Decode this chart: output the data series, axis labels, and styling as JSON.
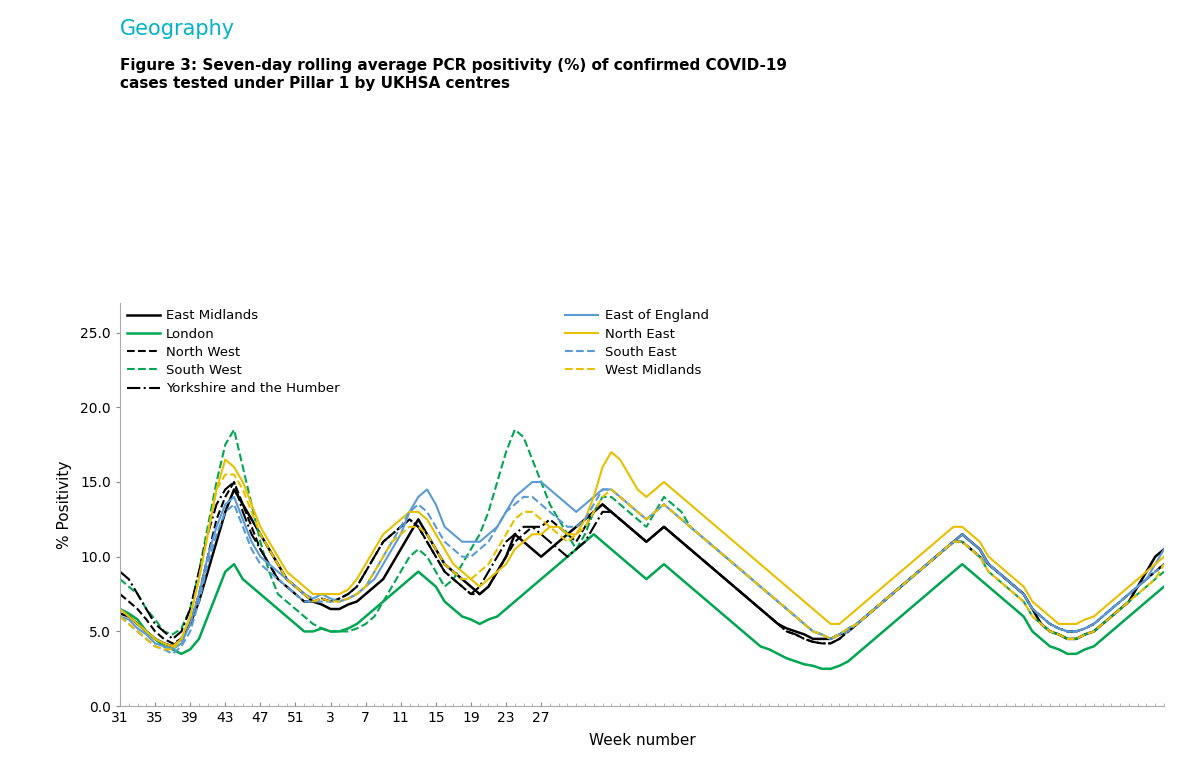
{
  "title_geography": "Geography",
  "title_figure": "Figure 3: Seven-day rolling average PCR positivity (%) of confirmed COVID-19\ncases tested under Pillar 1 by UKHSA centres",
  "xlabel": "Week number",
  "ylabel": "% Positivity",
  "ylim": [
    0.0,
    27.0
  ],
  "yticks": [
    0.0,
    5.0,
    10.0,
    15.0,
    20.0,
    25.0
  ],
  "xtick_labels": [
    "31",
    "35",
    "39",
    "43",
    "47",
    "51",
    "3",
    "7",
    "11",
    "15",
    "19",
    "23",
    "27"
  ],
  "background_color": "#ffffff",
  "geography_color": "#00b4c8",
  "series": {
    "East Midlands": {
      "color": "#000000",
      "linestyle": "solid",
      "linewidth": 1.8,
      "values": [
        6.2,
        6.0,
        5.5,
        5.0,
        4.5,
        4.2,
        4.0,
        4.5,
        5.5,
        7.0,
        9.0,
        11.0,
        13.0,
        14.5,
        13.5,
        12.5,
        11.5,
        10.5,
        9.5,
        8.5,
        8.0,
        7.5,
        7.0,
        6.8,
        6.5,
        6.5,
        6.8,
        7.0,
        7.5,
        8.0,
        8.5,
        9.5,
        10.5,
        11.5,
        12.5,
        11.5,
        10.5,
        9.5,
        9.0,
        8.5,
        8.0,
        7.5,
        8.0,
        9.0,
        10.0,
        11.5,
        11.0,
        10.5,
        10.0,
        10.5,
        11.0,
        11.5,
        12.0,
        12.5,
        13.0,
        13.5,
        13.0,
        12.5,
        12.0,
        11.5,
        11.0,
        11.5,
        12.0,
        11.5,
        11.0,
        10.5,
        10.0,
        9.5,
        9.0,
        8.5,
        8.0,
        7.5,
        7.0,
        6.5,
        6.0,
        5.5,
        5.2,
        5.0,
        4.8,
        4.5,
        4.5,
        4.5,
        4.8,
        5.0,
        5.5,
        6.0,
        6.5,
        7.0,
        7.5,
        8.0,
        8.5,
        9.0,
        9.5,
        10.0,
        10.5,
        11.0,
        11.5,
        11.0,
        10.5,
        9.5,
        9.0,
        8.5,
        8.0,
        7.5,
        6.5,
        5.5,
        5.0,
        4.8,
        4.5,
        4.5,
        4.8,
        5.0,
        5.5,
        6.0,
        6.5,
        7.0,
        8.0,
        9.0,
        10.0,
        10.5
      ]
    },
    "London": {
      "color": "#00a650",
      "linestyle": "solid",
      "linewidth": 1.8,
      "values": [
        6.5,
        6.2,
        5.8,
        5.0,
        4.5,
        4.0,
        3.8,
        3.5,
        3.8,
        4.5,
        6.0,
        7.5,
        9.0,
        9.5,
        8.5,
        8.0,
        7.5,
        7.0,
        6.5,
        6.0,
        5.5,
        5.0,
        5.0,
        5.2,
        5.0,
        5.0,
        5.2,
        5.5,
        6.0,
        6.5,
        7.0,
        7.5,
        8.0,
        8.5,
        9.0,
        8.5,
        8.0,
        7.0,
        6.5,
        6.0,
        5.8,
        5.5,
        5.8,
        6.0,
        6.5,
        7.0,
        7.5,
        8.0,
        8.5,
        9.0,
        9.5,
        10.0,
        10.5,
        11.0,
        11.5,
        11.0,
        10.5,
        10.0,
        9.5,
        9.0,
        8.5,
        9.0,
        9.5,
        9.0,
        8.5,
        8.0,
        7.5,
        7.0,
        6.5,
        6.0,
        5.5,
        5.0,
        4.5,
        4.0,
        3.8,
        3.5,
        3.2,
        3.0,
        2.8,
        2.7,
        2.5,
        2.5,
        2.7,
        3.0,
        3.5,
        4.0,
        4.5,
        5.0,
        5.5,
        6.0,
        6.5,
        7.0,
        7.5,
        8.0,
        8.5,
        9.0,
        9.5,
        9.0,
        8.5,
        8.0,
        7.5,
        7.0,
        6.5,
        6.0,
        5.0,
        4.5,
        4.0,
        3.8,
        3.5,
        3.5,
        3.8,
        4.0,
        4.5,
        5.0,
        5.5,
        6.0,
        6.5,
        7.0,
        7.5,
        8.0
      ]
    },
    "North West": {
      "color": "#000000",
      "linestyle": "dashed",
      "linewidth": 1.5,
      "values": [
        7.5,
        7.0,
        6.5,
        5.8,
        5.0,
        4.5,
        4.2,
        4.5,
        5.5,
        7.5,
        10.0,
        12.5,
        14.0,
        15.0,
        13.5,
        12.0,
        10.5,
        9.5,
        8.5,
        8.0,
        7.5,
        7.0,
        7.0,
        7.2,
        7.0,
        7.2,
        7.5,
        8.0,
        9.0,
        10.0,
        11.0,
        11.5,
        12.0,
        12.5,
        12.0,
        11.0,
        10.0,
        9.0,
        8.5,
        8.0,
        7.5,
        7.5,
        8.0,
        9.0,
        10.0,
        11.0,
        11.5,
        12.0,
        12.0,
        12.5,
        12.0,
        11.5,
        11.0,
        12.0,
        13.0,
        13.5,
        13.0,
        12.5,
        12.0,
        11.5,
        11.0,
        11.5,
        12.0,
        11.5,
        11.0,
        10.5,
        10.0,
        9.5,
        9.0,
        8.5,
        8.0,
        7.5,
        7.0,
        6.5,
        6.0,
        5.5,
        5.0,
        4.8,
        4.5,
        4.3,
        4.2,
        4.2,
        4.5,
        5.0,
        5.5,
        6.0,
        6.5,
        7.0,
        7.5,
        8.0,
        8.5,
        9.0,
        9.5,
        10.0,
        10.5,
        11.0,
        11.0,
        10.5,
        10.0,
        9.5,
        9.0,
        8.5,
        8.0,
        7.5,
        6.5,
        6.0,
        5.5,
        5.2,
        5.0,
        5.0,
        5.2,
        5.5,
        6.0,
        6.5,
        7.0,
        7.5,
        8.0,
        8.5,
        9.0,
        9.5
      ]
    },
    "South West": {
      "color": "#00a650",
      "linestyle": "dashed",
      "linewidth": 1.5,
      "values": [
        8.5,
        8.0,
        7.5,
        6.5,
        5.8,
        5.0,
        4.8,
        5.2,
        6.5,
        9.0,
        12.0,
        15.0,
        17.5,
        18.5,
        16.0,
        13.5,
        11.0,
        9.0,
        7.5,
        7.0,
        6.5,
        6.0,
        5.5,
        5.2,
        5.0,
        5.0,
        5.0,
        5.2,
        5.5,
        6.0,
        7.0,
        8.0,
        9.0,
        10.0,
        10.5,
        10.0,
        9.0,
        8.0,
        8.5,
        9.5,
        10.5,
        11.5,
        13.0,
        15.0,
        17.0,
        18.5,
        18.0,
        16.5,
        15.0,
        13.5,
        12.5,
        11.5,
        10.5,
        11.5,
        13.0,
        14.0,
        14.0,
        13.5,
        13.0,
        12.5,
        12.0,
        13.0,
        14.0,
        13.5,
        13.0,
        12.0,
        11.5,
        11.0,
        10.5,
        10.0,
        9.5,
        9.0,
        8.5,
        8.0,
        7.5,
        7.0,
        6.5,
        6.0,
        5.5,
        5.0,
        4.8,
        4.5,
        4.8,
        5.2,
        5.5,
        6.0,
        6.5,
        7.0,
        7.5,
        8.0,
        8.5,
        9.0,
        9.5,
        10.0,
        10.5,
        11.0,
        11.0,
        10.5,
        10.0,
        9.0,
        8.5,
        8.0,
        7.5,
        7.0,
        6.0,
        5.5,
        5.0,
        4.8,
        4.5,
        4.5,
        4.8,
        5.0,
        5.5,
        6.0,
        6.5,
        7.0,
        7.5,
        8.0,
        8.5,
        9.0
      ]
    },
    "Yorkshire and the Humber": {
      "color": "#000000",
      "linestyle": "dashdot",
      "linewidth": 1.5,
      "values": [
        9.0,
        8.5,
        7.5,
        6.5,
        5.5,
        5.0,
        4.5,
        5.0,
        6.5,
        9.0,
        11.5,
        13.5,
        14.5,
        15.0,
        13.0,
        11.5,
        10.5,
        9.5,
        8.5,
        8.0,
        7.5,
        7.0,
        7.0,
        7.2,
        7.0,
        7.2,
        7.5,
        8.0,
        9.0,
        10.0,
        11.0,
        11.5,
        12.0,
        12.5,
        12.0,
        11.0,
        10.0,
        9.0,
        8.5,
        8.0,
        7.5,
        8.0,
        9.0,
        10.0,
        11.0,
        11.5,
        12.0,
        12.0,
        11.5,
        11.0,
        10.5,
        10.0,
        10.5,
        11.0,
        12.0,
        13.0,
        13.0,
        12.5,
        12.0,
        11.5,
        11.0,
        11.5,
        12.0,
        11.5,
        11.0,
        10.5,
        10.0,
        9.5,
        9.0,
        8.5,
        8.0,
        7.5,
        7.0,
        6.5,
        6.0,
        5.5,
        5.0,
        4.8,
        4.5,
        4.3,
        4.2,
        4.2,
        4.5,
        5.0,
        5.5,
        6.0,
        6.5,
        7.0,
        7.5,
        8.0,
        8.5,
        9.0,
        9.5,
        10.0,
        10.5,
        11.0,
        11.0,
        10.5,
        10.0,
        9.5,
        9.0,
        8.5,
        8.0,
        7.5,
        6.5,
        6.0,
        5.5,
        5.2,
        5.0,
        5.0,
        5.2,
        5.5,
        6.0,
        6.5,
        7.0,
        7.5,
        8.0,
        8.5,
        9.0,
        9.5
      ]
    },
    "East of England": {
      "color": "#5b9bd5",
      "linestyle": "solid",
      "linewidth": 1.5,
      "values": [
        6.0,
        5.8,
        5.2,
        4.8,
        4.2,
        4.0,
        3.8,
        4.2,
        5.5,
        7.5,
        10.0,
        12.0,
        13.5,
        14.0,
        12.5,
        11.0,
        10.0,
        9.5,
        9.0,
        8.5,
        8.0,
        7.5,
        7.2,
        7.5,
        7.2,
        7.0,
        7.2,
        7.5,
        8.0,
        8.5,
        9.5,
        10.5,
        11.5,
        13.0,
        14.0,
        14.5,
        13.5,
        12.0,
        11.5,
        11.0,
        11.0,
        11.0,
        11.5,
        12.0,
        13.0,
        14.0,
        14.5,
        15.0,
        15.0,
        14.5,
        14.0,
        13.5,
        13.0,
        13.5,
        14.0,
        14.5,
        14.5,
        14.0,
        13.5,
        13.0,
        12.5,
        13.0,
        13.5,
        13.0,
        12.5,
        12.0,
        11.5,
        11.0,
        10.5,
        10.0,
        9.5,
        9.0,
        8.5,
        8.0,
        7.5,
        7.0,
        6.5,
        6.0,
        5.5,
        5.0,
        4.8,
        4.5,
        4.8,
        5.2,
        5.5,
        6.0,
        6.5,
        7.0,
        7.5,
        8.0,
        8.5,
        9.0,
        9.5,
        10.0,
        10.5,
        11.0,
        11.5,
        11.0,
        10.5,
        9.5,
        9.0,
        8.5,
        8.0,
        7.5,
        6.5,
        6.0,
        5.5,
        5.2,
        5.0,
        5.0,
        5.2,
        5.5,
        6.0,
        6.5,
        7.0,
        7.5,
        8.0,
        8.5,
        9.5,
        10.5
      ]
    },
    "North East": {
      "color": "#e8c000",
      "linestyle": "solid",
      "linewidth": 1.5,
      "values": [
        6.5,
        6.0,
        5.5,
        5.0,
        4.5,
        4.2,
        4.0,
        4.5,
        6.0,
        8.5,
        11.5,
        14.5,
        16.5,
        16.0,
        15.0,
        13.5,
        12.0,
        11.0,
        10.0,
        9.0,
        8.5,
        8.0,
        7.5,
        7.5,
        7.5,
        7.5,
        7.8,
        8.5,
        9.5,
        10.5,
        11.5,
        12.0,
        12.5,
        13.0,
        13.0,
        12.5,
        11.5,
        10.5,
        9.5,
        9.0,
        8.5,
        8.0,
        8.5,
        9.0,
        9.5,
        10.5,
        11.0,
        11.5,
        11.5,
        12.0,
        12.0,
        11.5,
        11.5,
        12.5,
        14.0,
        16.0,
        17.0,
        16.5,
        15.5,
        14.5,
        14.0,
        14.5,
        15.0,
        14.5,
        14.0,
        13.5,
        13.0,
        12.5,
        12.0,
        11.5,
        11.0,
        10.5,
        10.0,
        9.5,
        9.0,
        8.5,
        8.0,
        7.5,
        7.0,
        6.5,
        6.0,
        5.5,
        5.5,
        6.0,
        6.5,
        7.0,
        7.5,
        8.0,
        8.5,
        9.0,
        9.5,
        10.0,
        10.5,
        11.0,
        11.5,
        12.0,
        12.0,
        11.5,
        11.0,
        10.0,
        9.5,
        9.0,
        8.5,
        8.0,
        7.0,
        6.5,
        6.0,
        5.5,
        5.5,
        5.5,
        5.8,
        6.0,
        6.5,
        7.0,
        7.5,
        8.0,
        8.5,
        9.0,
        9.5,
        10.0
      ]
    },
    "South East": {
      "color": "#5b9bd5",
      "linestyle": "dashed",
      "linewidth": 1.5,
      "values": [
        6.0,
        5.5,
        5.0,
        4.5,
        4.0,
        3.8,
        3.5,
        4.0,
        5.0,
        7.0,
        9.5,
        11.5,
        13.0,
        13.5,
        12.0,
        10.5,
        9.5,
        9.0,
        8.5,
        8.0,
        7.5,
        7.0,
        7.0,
        7.0,
        7.0,
        7.0,
        7.2,
        7.5,
        8.0,
        9.0,
        10.0,
        11.0,
        12.0,
        13.0,
        13.5,
        13.0,
        12.0,
        11.0,
        10.5,
        10.0,
        10.0,
        10.5,
        11.0,
        12.0,
        13.0,
        13.5,
        14.0,
        14.0,
        13.5,
        13.0,
        12.5,
        12.0,
        12.0,
        12.5,
        13.5,
        14.5,
        14.5,
        14.0,
        13.5,
        13.0,
        12.5,
        13.0,
        13.5,
        13.0,
        12.5,
        12.0,
        11.5,
        11.0,
        10.5,
        10.0,
        9.5,
        9.0,
        8.5,
        8.0,
        7.5,
        7.0,
        6.5,
        6.0,
        5.5,
        5.0,
        4.8,
        4.5,
        4.8,
        5.0,
        5.5,
        6.0,
        6.5,
        7.0,
        7.5,
        8.0,
        8.5,
        9.0,
        9.5,
        10.0,
        10.5,
        11.0,
        11.0,
        10.5,
        10.0,
        9.5,
        9.0,
        8.5,
        8.0,
        7.5,
        6.5,
        6.0,
        5.5,
        5.2,
        5.0,
        5.0,
        5.2,
        5.5,
        6.0,
        6.5,
        7.0,
        7.5,
        8.0,
        8.5,
        9.0,
        9.5
      ]
    },
    "West Midlands": {
      "color": "#e8c000",
      "linestyle": "dashed",
      "linewidth": 1.5,
      "values": [
        6.0,
        5.5,
        5.0,
        4.5,
        4.0,
        3.8,
        3.8,
        4.5,
        6.0,
        8.5,
        11.5,
        14.5,
        15.5,
        15.5,
        14.5,
        13.0,
        11.5,
        10.5,
        9.5,
        8.5,
        8.0,
        7.5,
        7.0,
        7.2,
        7.0,
        7.0,
        7.2,
        7.5,
        8.0,
        9.0,
        10.0,
        11.0,
        11.5,
        12.0,
        12.0,
        11.5,
        10.5,
        9.5,
        9.0,
        8.5,
        8.5,
        9.0,
        9.5,
        10.5,
        11.5,
        12.5,
        13.0,
        13.0,
        12.5,
        12.0,
        11.5,
        11.0,
        11.5,
        12.0,
        13.0,
        14.0,
        14.5,
        14.0,
        13.5,
        13.0,
        12.5,
        13.0,
        13.5,
        13.0,
        12.5,
        12.0,
        11.5,
        11.0,
        10.5,
        10.0,
        9.5,
        9.0,
        8.5,
        8.0,
        7.5,
        7.0,
        6.5,
        6.0,
        5.5,
        5.0,
        4.8,
        4.5,
        4.8,
        5.2,
        5.5,
        6.0,
        6.5,
        7.0,
        7.5,
        8.0,
        8.5,
        9.0,
        9.5,
        10.0,
        10.5,
        11.0,
        11.0,
        10.5,
        10.0,
        9.0,
        8.5,
        8.0,
        7.5,
        7.0,
        6.0,
        5.5,
        5.0,
        4.8,
        4.5,
        4.5,
        4.8,
        5.0,
        5.5,
        6.0,
        6.5,
        7.0,
        7.5,
        8.0,
        8.5,
        9.5
      ]
    }
  },
  "n_points": 120,
  "legend_order_left": [
    "East Midlands",
    "London",
    "North West",
    "South West",
    "Yorkshire and the Humber"
  ],
  "legend_order_right": [
    "East of England",
    "North East",
    "South East",
    "West Midlands"
  ]
}
